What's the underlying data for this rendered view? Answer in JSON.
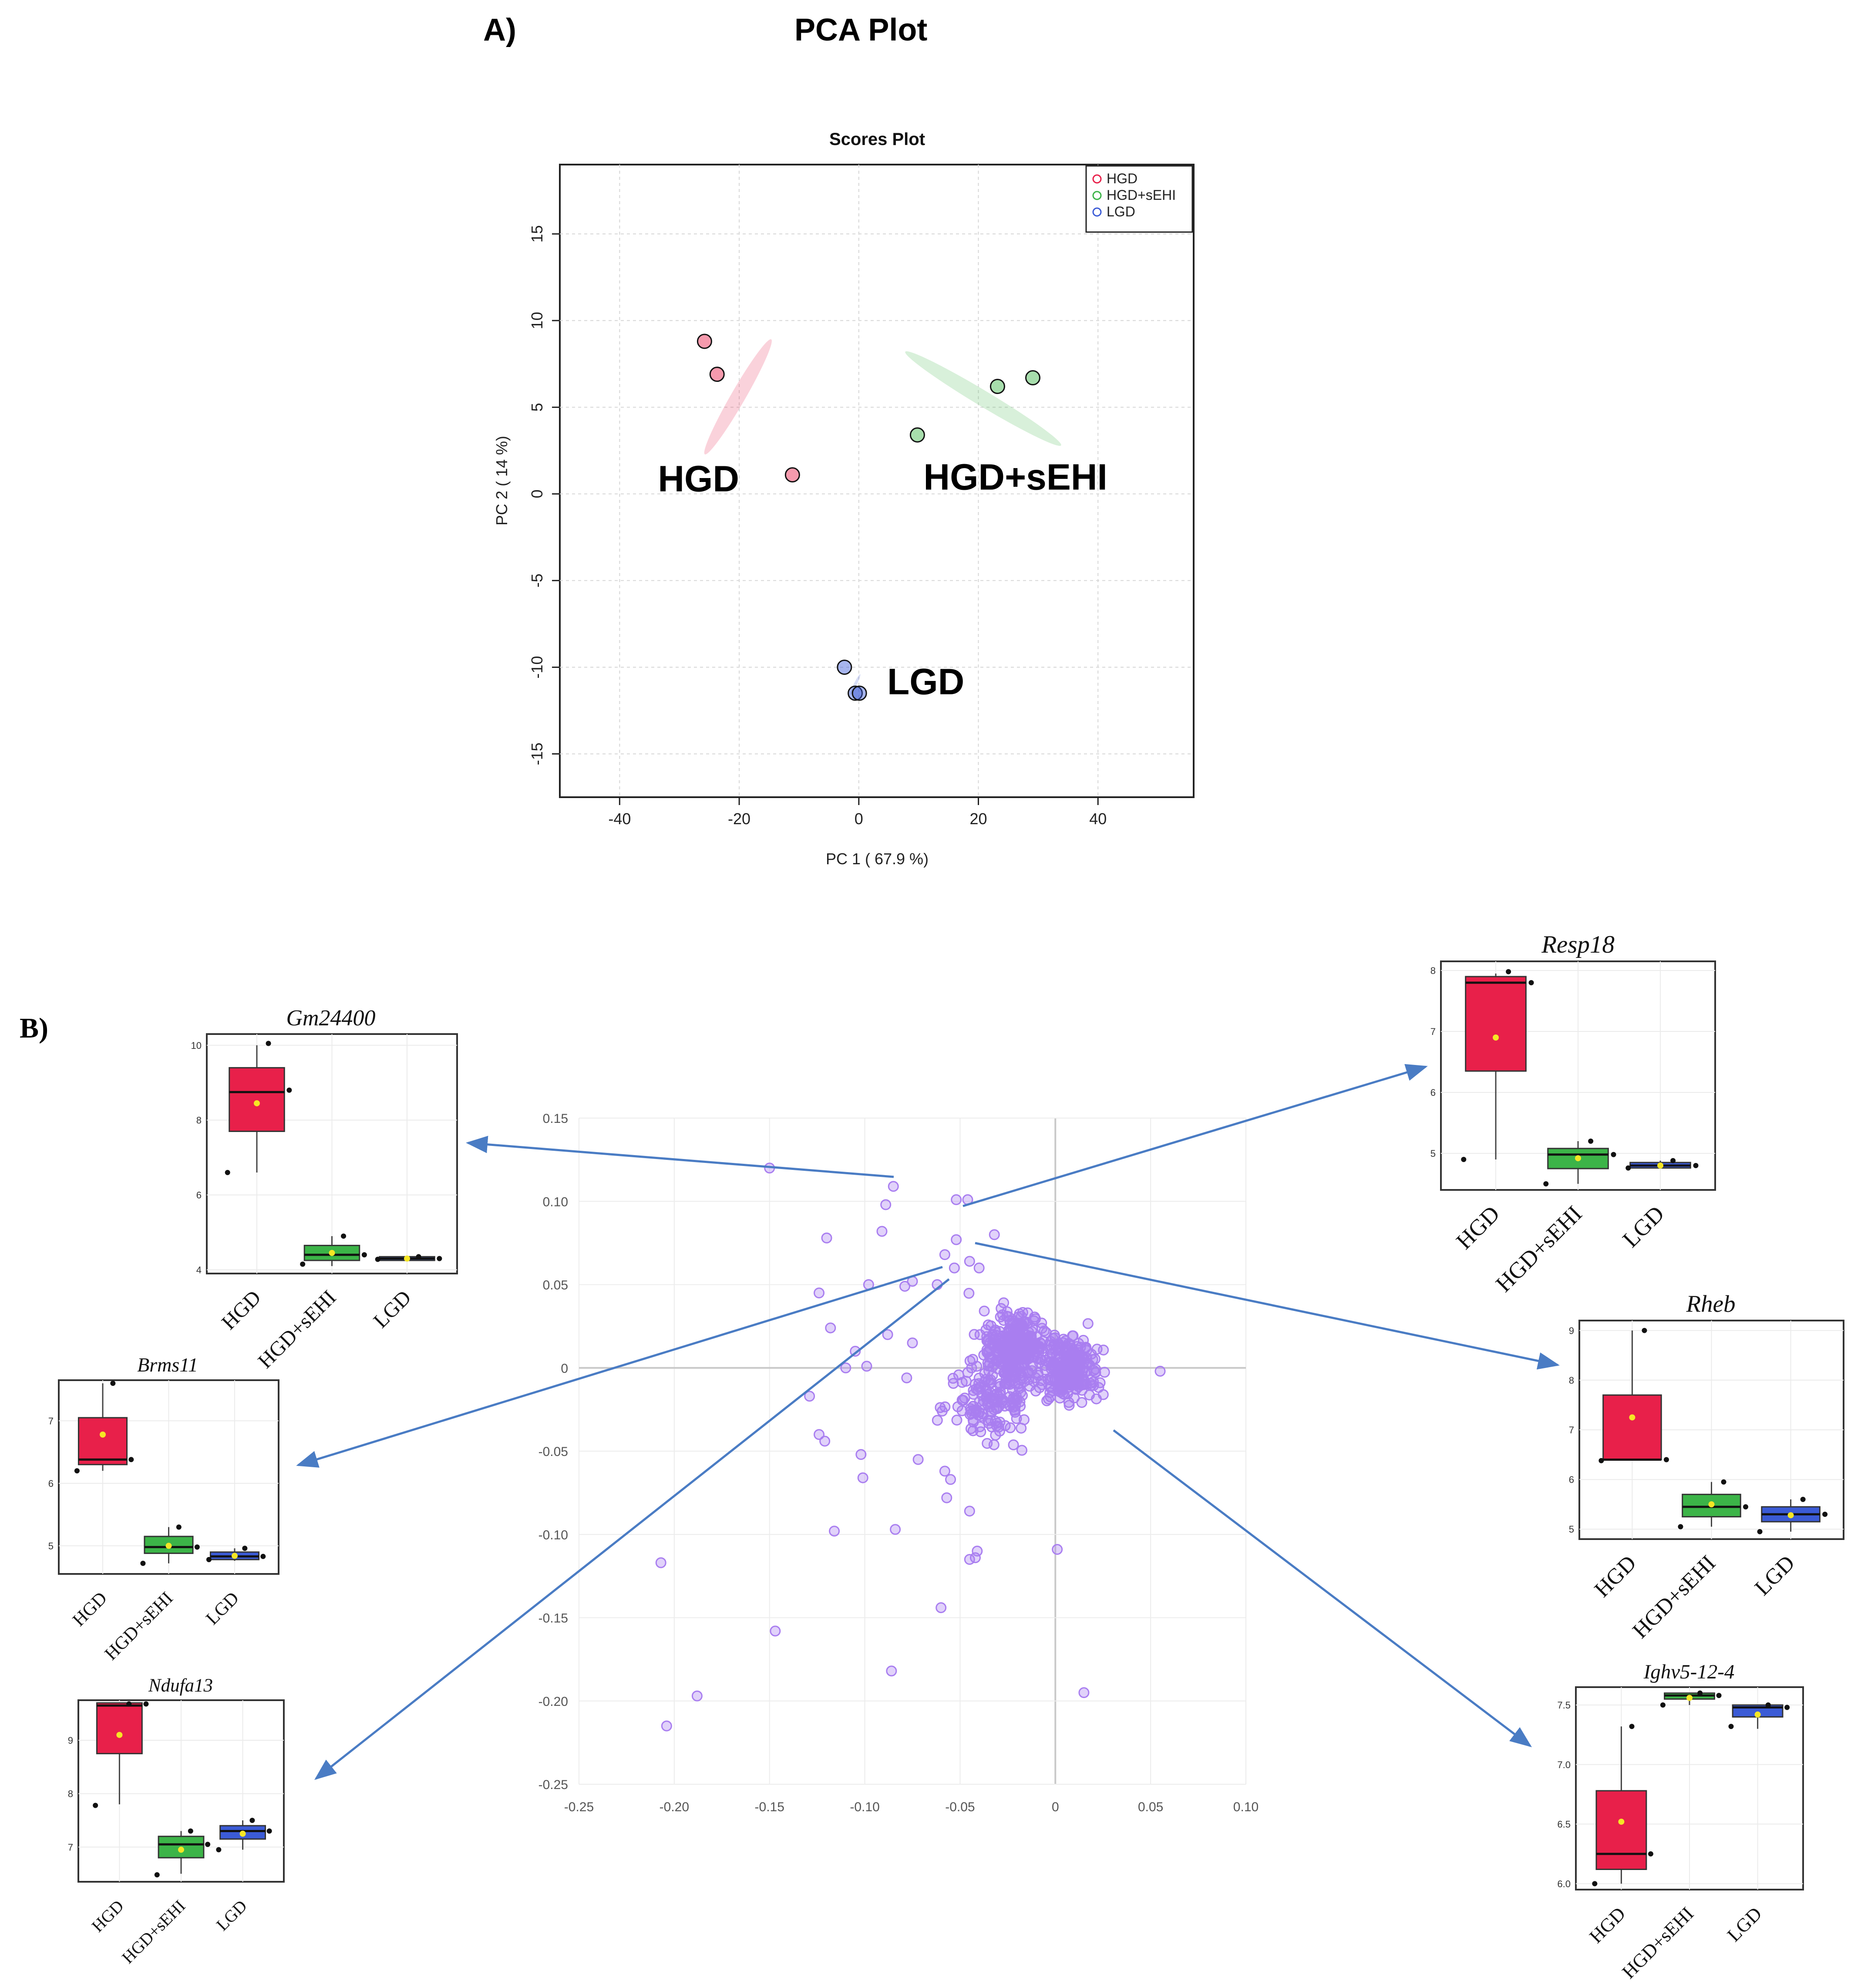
{
  "figure": {
    "panel_a_label": "A)",
    "panel_a_title": "PCA Plot",
    "panel_b_label": "B)"
  },
  "colors": {
    "hgd": "#e8204a",
    "hgd_sehi": "#3cb448",
    "lgd": "#3b5bd6",
    "loading_point": "#a97ef0",
    "arrow": "#4a7cc4",
    "mean_dot": "#f5e625"
  },
  "chart_data": [
    {
      "id": "pca",
      "type": "scatter",
      "title": "Scores Plot",
      "xlabel": "PC 1 ( 67.9 %)",
      "ylabel": "PC 2 ( 14 %)",
      "xlim": [
        -50,
        56
      ],
      "ylim": [
        -17.5,
        19
      ],
      "xticks": [
        -40,
        -20,
        0,
        20,
        40
      ],
      "yticks": [
        -15,
        -10,
        -5,
        0,
        5,
        10,
        15
      ],
      "grid": true,
      "legend_position": "top-right",
      "series": [
        {
          "name": "HGD",
          "big_label": "HGD",
          "color": "#e8204a",
          "points": [
            [
              -25.8,
              8.8
            ],
            [
              -23.7,
              6.9
            ],
            [
              -11.1,
              1.1
            ]
          ],
          "ellipse": {
            "cx": -20.2,
            "cy": 5.6,
            "angle": -60,
            "rx": 11.1,
            "ry": 1.2
          }
        },
        {
          "name": "HGD+sEHI",
          "big_label": "HGD+sEHI",
          "color": "#3cb448",
          "points": [
            [
              9.8,
              3.4
            ],
            [
              23.2,
              6.2
            ],
            [
              29.1,
              6.7
            ]
          ],
          "ellipse": {
            "cx": 20.8,
            "cy": 5.5,
            "angle": 31,
            "rx": 15.2,
            "ry": 1.3
          }
        },
        {
          "name": "LGD",
          "big_label": "LGD",
          "color": "#3b5bd6",
          "points": [
            [
              -2.4,
              -10.0
            ],
            [
              -0.6,
              -11.5
            ],
            [
              0.1,
              -11.5
            ]
          ],
          "ellipse": {
            "cx": -0.6,
            "cy": -11.0,
            "angle": -64,
            "rx": 1.92,
            "ry": 0.25
          }
        }
      ]
    },
    {
      "id": "loadings",
      "type": "scatter",
      "title": "",
      "xlabel": "",
      "ylabel": "",
      "xlim": [
        -0.25,
        0.1
      ],
      "ylim": [
        -0.25,
        0.15
      ],
      "xticks": [
        -0.25,
        -0.2,
        -0.15,
        -0.1,
        -0.05,
        0,
        0.05,
        0.1
      ],
      "xtick_labels": [
        "-0.25",
        "-0.20",
        "-0.15",
        "-0.10",
        "-0.05",
        "0",
        "0.05",
        "0.10"
      ],
      "yticks": [
        -0.25,
        -0.2,
        -0.15,
        -0.1,
        -0.05,
        0,
        0.05,
        0.1,
        0.15
      ],
      "ytick_labels": [
        "-0.25",
        "-0.20",
        "-0.15",
        "-0.10",
        "-0.05",
        "0",
        "0.05",
        "0.10",
        "0.15"
      ],
      "grid": true,
      "cluster_points": 700,
      "points": [
        [
          -0.085,
          0.109
        ],
        [
          -0.052,
          0.101
        ],
        [
          -0.046,
          0.101
        ],
        [
          -0.091,
          0.082
        ],
        [
          -0.12,
          0.078
        ],
        [
          -0.032,
          0.08
        ],
        [
          -0.052,
          0.077
        ],
        [
          -0.058,
          0.068
        ],
        [
          -0.045,
          0.064
        ],
        [
          -0.04,
          0.06
        ],
        [
          -0.053,
          0.06
        ],
        [
          -0.075,
          0.052
        ],
        [
          -0.079,
          0.049
        ],
        [
          -0.062,
          0.05
        ],
        [
          -0.124,
          0.045
        ],
        [
          -0.098,
          0.05
        ],
        [
          -0.105,
          0.01
        ],
        [
          -0.118,
          0.024
        ],
        [
          -0.088,
          0.02
        ],
        [
          -0.075,
          0.015
        ],
        [
          -0.099,
          0.001
        ],
        [
          -0.11,
          0.0
        ],
        [
          -0.078,
          -0.006
        ],
        [
          -0.129,
          -0.017
        ],
        [
          -0.124,
          -0.04
        ],
        [
          -0.121,
          -0.044
        ],
        [
          -0.102,
          -0.052
        ],
        [
          -0.101,
          -0.066
        ],
        [
          -0.072,
          -0.055
        ],
        [
          -0.058,
          -0.062
        ],
        [
          -0.055,
          -0.067
        ],
        [
          -0.057,
          -0.078
        ],
        [
          -0.116,
          -0.098
        ],
        [
          -0.084,
          -0.097
        ],
        [
          -0.045,
          -0.086
        ],
        [
          -0.041,
          -0.11
        ],
        [
          -0.042,
          -0.114
        ],
        [
          -0.045,
          -0.115
        ],
        [
          -0.06,
          -0.144
        ],
        [
          -0.147,
          -0.158
        ],
        [
          -0.086,
          -0.182
        ],
        [
          -0.207,
          -0.117
        ],
        [
          -0.188,
          -0.197
        ],
        [
          -0.204,
          -0.215
        ],
        [
          0.015,
          -0.195
        ],
        [
          0.001,
          -0.109
        ],
        [
          0.055,
          -0.002
        ],
        [
          -0.089,
          0.098
        ],
        [
          -0.15,
          0.12
        ]
      ]
    },
    {
      "id": "gm24400",
      "type": "box",
      "title": "Gm24400",
      "categories": [
        "HGD",
        "HGD+sEHI",
        "LGD"
      ],
      "ylim": [
        3.9,
        10.3
      ],
      "yticks": [
        4,
        6,
        8,
        10
      ],
      "ytick_labels": [
        "4",
        "6",
        "8",
        "10"
      ],
      "boxes": [
        {
          "q1": 7.7,
          "median": 8.75,
          "q3": 9.4,
          "min": 6.6,
          "max": 10.0,
          "mean": 8.45,
          "points": [
            10.05,
            8.8,
            6.6
          ]
        },
        {
          "q1": 4.25,
          "median": 4.4,
          "q3": 4.65,
          "min": 4.1,
          "max": 4.9,
          "mean": 4.45,
          "points": [
            4.9,
            4.4,
            4.15
          ]
        },
        {
          "q1": 4.25,
          "median": 4.3,
          "q3": 4.35,
          "min": 4.25,
          "max": 4.35,
          "mean": 4.3,
          "points": [
            4.35,
            4.3,
            4.28
          ]
        }
      ]
    },
    {
      "id": "brms11",
      "type": "box",
      "title": "Brms11",
      "categories": [
        "HGD",
        "HGD+sEHI",
        "LGD"
      ],
      "ylim": [
        4.55,
        7.65
      ],
      "yticks": [
        5,
        6,
        7
      ],
      "ytick_labels": [
        "5",
        "6",
        "7"
      ],
      "boxes": [
        {
          "q1": 6.3,
          "median": 6.38,
          "q3": 7.05,
          "min": 6.2,
          "max": 7.6,
          "mean": 6.78,
          "points": [
            7.6,
            6.38,
            6.2
          ]
        },
        {
          "q1": 4.88,
          "median": 4.98,
          "q3": 5.15,
          "min": 4.72,
          "max": 5.3,
          "mean": 5.0,
          "points": [
            5.3,
            4.98,
            4.72
          ]
        },
        {
          "q1": 4.78,
          "median": 4.83,
          "q3": 4.9,
          "min": 4.76,
          "max": 4.96,
          "mean": 4.84,
          "points": [
            4.96,
            4.83,
            4.78
          ]
        }
      ]
    },
    {
      "id": "ndufa13",
      "type": "box",
      "title": "Ndufa13",
      "categories": [
        "HGD",
        "HGD+sEHI",
        "LGD"
      ],
      "ylim": [
        6.35,
        9.75
      ],
      "yticks": [
        7,
        8,
        9
      ],
      "ytick_labels": [
        "7",
        "8",
        "9"
      ],
      "boxes": [
        {
          "q1": 8.75,
          "median": 9.65,
          "q3": 9.7,
          "min": 7.8,
          "max": 9.7,
          "mean": 9.1,
          "points": [
            9.68,
            9.68,
            7.78
          ]
        },
        {
          "q1": 6.8,
          "median": 7.05,
          "q3": 7.2,
          "min": 6.5,
          "max": 7.3,
          "mean": 6.95,
          "points": [
            7.3,
            7.05,
            6.48
          ]
        },
        {
          "q1": 7.15,
          "median": 7.3,
          "q3": 7.4,
          "min": 6.95,
          "max": 7.5,
          "mean": 7.25,
          "points": [
            7.5,
            7.3,
            6.95
          ]
        }
      ]
    },
    {
      "id": "resp18",
      "type": "box",
      "title": "Resp18",
      "categories": [
        "HGD",
        "HGD+sEHI",
        "LGD"
      ],
      "ylim": [
        4.4,
        8.15
      ],
      "yticks": [
        5,
        6,
        7,
        8
      ],
      "ytick_labels": [
        "5",
        "6",
        "7",
        "8"
      ],
      "boxes": [
        {
          "q1": 6.35,
          "median": 7.8,
          "q3": 7.9,
          "min": 4.9,
          "max": 7.95,
          "mean": 6.9,
          "points": [
            7.98,
            7.8,
            4.9
          ]
        },
        {
          "q1": 4.75,
          "median": 4.98,
          "q3": 5.08,
          "min": 4.5,
          "max": 5.2,
          "mean": 4.92,
          "points": [
            5.2,
            4.98,
            4.5
          ]
        },
        {
          "q1": 4.76,
          "median": 4.8,
          "q3": 4.85,
          "min": 4.75,
          "max": 4.88,
          "mean": 4.8,
          "points": [
            4.88,
            4.8,
            4.76
          ]
        }
      ]
    },
    {
      "id": "rheb",
      "type": "box",
      "title": "Rheb",
      "categories": [
        "HGD",
        "HGD+sEHI",
        "LGD"
      ],
      "ylim": [
        4.8,
        9.2
      ],
      "yticks": [
        5,
        6,
        7,
        8,
        9
      ],
      "ytick_labels": [
        "5",
        "6",
        "7",
        "8",
        "9"
      ],
      "boxes": [
        {
          "q1": 6.4,
          "median": 6.4,
          "q3": 7.7,
          "min": 6.38,
          "max": 9.0,
          "mean": 7.25,
          "points": [
            9.0,
            6.4,
            6.38
          ]
        },
        {
          "q1": 5.25,
          "median": 5.45,
          "q3": 5.7,
          "min": 5.05,
          "max": 5.95,
          "mean": 5.5,
          "points": [
            5.95,
            5.45,
            5.05
          ]
        },
        {
          "q1": 5.15,
          "median": 5.3,
          "q3": 5.45,
          "min": 4.95,
          "max": 5.6,
          "mean": 5.28,
          "points": [
            5.6,
            5.3,
            4.95
          ]
        }
      ]
    },
    {
      "id": "ighv5",
      "type": "box",
      "title": "Ighv5-12-4",
      "categories": [
        "HGD",
        "HGD+sEHI",
        "LGD"
      ],
      "ylim": [
        5.95,
        7.65
      ],
      "yticks": [
        6.0,
        6.5,
        7.0,
        7.5
      ],
      "ytick_labels": [
        "6.0",
        "6.5",
        "7.0",
        "7.5"
      ],
      "boxes": [
        {
          "q1": 6.12,
          "median": 6.25,
          "q3": 6.78,
          "min": 6.0,
          "max": 7.32,
          "mean": 6.52,
          "points": [
            7.32,
            6.25,
            6.0
          ]
        },
        {
          "q1": 7.55,
          "median": 7.58,
          "q3": 7.6,
          "min": 7.5,
          "max": 7.6,
          "mean": 7.56,
          "points": [
            7.6,
            7.58,
            7.5
          ]
        },
        {
          "q1": 7.4,
          "median": 7.48,
          "q3": 7.5,
          "min": 7.3,
          "max": 7.5,
          "mean": 7.42,
          "points": [
            7.5,
            7.48,
            7.32
          ]
        }
      ]
    }
  ]
}
